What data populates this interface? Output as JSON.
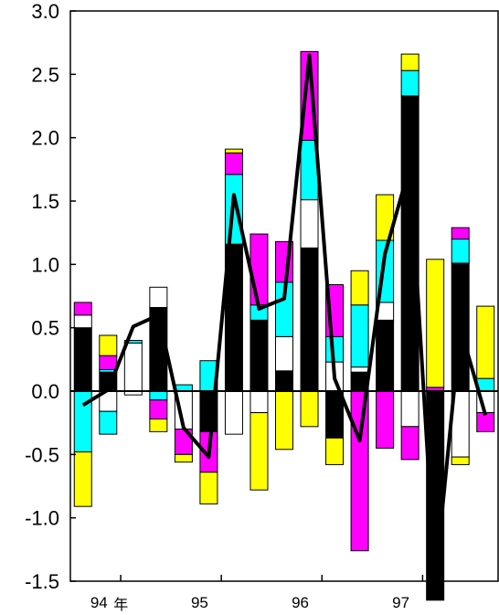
{
  "chart_data": {
    "type": "bar",
    "stacked": true,
    "ylim": [
      -1.5,
      3.0
    ],
    "yticks": [
      "3.0",
      "2.5",
      "2.0",
      "1.5",
      "1.0",
      "0.5",
      "0.0",
      "-0.5",
      "-1.0",
      "-1.5"
    ],
    "yticks_values": [
      3.0,
      2.5,
      2.0,
      1.5,
      1.0,
      0.5,
      0.0,
      -0.5,
      -1.0,
      -1.5
    ],
    "x_tick_labels": [
      {
        "text": "94",
        "after_quarter": 1.5
      },
      {
        "text": "年",
        "after_quarter": 1.5
      },
      {
        "text": "95",
        "after_quarter": 5.5
      },
      {
        "text": "96",
        "after_quarter": 9.5
      },
      {
        "text": "97",
        "after_quarter": 13.5
      }
    ],
    "quarters": 17,
    "series_colors": {
      "black": "#000000",
      "white": "#ffffff",
      "cyan": "#00ffff",
      "magenta": "#ff00ff",
      "yellow": "#ffff00",
      "line": "#000000"
    },
    "stacks": [
      {
        "pos": [
          [
            "black",
            0.5
          ],
          [
            "white",
            0.1
          ],
          [
            "magenta",
            0.1
          ]
        ],
        "neg": [
          [
            "cyan",
            -0.48
          ],
          [
            "yellow",
            -0.43
          ]
        ]
      },
      {
        "pos": [
          [
            "black",
            0.15
          ],
          [
            "cyan",
            0.02
          ],
          [
            "magenta",
            0.11
          ],
          [
            "yellow",
            0.16
          ]
        ],
        "neg": [
          [
            "white",
            -0.16
          ],
          [
            "cyan",
            -0.18
          ]
        ]
      },
      {
        "pos": [
          [
            "white",
            0.38
          ],
          [
            "cyan",
            0.02
          ]
        ],
        "neg": [
          [
            "white",
            -0.03
          ]
        ]
      },
      {
        "pos": [
          [
            "black",
            0.66
          ],
          [
            "white",
            0.16
          ]
        ],
        "neg": [
          [
            "cyan",
            -0.07
          ],
          [
            "magenta",
            -0.15
          ],
          [
            "yellow",
            -0.1
          ]
        ]
      },
      {
        "pos": [
          [
            "cyan",
            0.05
          ]
        ],
        "neg": [
          [
            "white",
            -0.3
          ],
          [
            "magenta",
            -0.2
          ],
          [
            "yellow",
            -0.06
          ]
        ]
      },
      {
        "pos": [
          [
            "cyan",
            0.24
          ]
        ],
        "neg": [
          [
            "black",
            -0.32
          ],
          [
            "magenta",
            -0.32
          ],
          [
            "yellow",
            -0.25
          ]
        ]
      },
      {
        "pos": [
          [
            "black",
            1.16
          ],
          [
            "cyan",
            0.55
          ],
          [
            "magenta",
            0.17
          ],
          [
            "yellow",
            0.03
          ]
        ],
        "neg": [
          [
            "white",
            -0.34
          ]
        ]
      },
      {
        "pos": [
          [
            "black",
            0.56
          ],
          [
            "cyan",
            0.12
          ],
          [
            "magenta",
            0.56
          ]
        ],
        "neg": [
          [
            "white",
            -0.17
          ],
          [
            "yellow",
            -0.61
          ]
        ]
      },
      {
        "pos": [
          [
            "black",
            0.16
          ],
          [
            "white",
            0.27
          ],
          [
            "cyan",
            0.43
          ],
          [
            "magenta",
            0.32
          ]
        ],
        "neg": [
          [
            "yellow",
            -0.46
          ]
        ]
      },
      {
        "pos": [
          [
            "black",
            1.13
          ],
          [
            "white",
            0.38
          ],
          [
            "cyan",
            0.47
          ],
          [
            "magenta",
            0.7
          ]
        ],
        "neg": [
          [
            "yellow",
            -0.28
          ]
        ]
      },
      {
        "pos": [
          [
            "white",
            0.23
          ],
          [
            "cyan",
            0.2
          ],
          [
            "magenta",
            0.41
          ]
        ],
        "neg": [
          [
            "black",
            -0.37
          ],
          [
            "yellow",
            -0.21
          ]
        ]
      },
      {
        "pos": [
          [
            "black",
            0.15
          ],
          [
            "white",
            0.04
          ],
          [
            "cyan",
            0.49
          ],
          [
            "yellow",
            0.27
          ]
        ],
        "neg": [
          [
            "magenta",
            -1.26
          ]
        ]
      },
      {
        "pos": [
          [
            "black",
            0.56
          ],
          [
            "white",
            0.14
          ],
          [
            "cyan",
            0.49
          ],
          [
            "yellow",
            0.36
          ]
        ],
        "neg": [
          [
            "magenta",
            -0.45
          ]
        ]
      },
      {
        "pos": [
          [
            "black",
            2.33
          ],
          [
            "cyan",
            0.2
          ],
          [
            "yellow",
            0.13
          ]
        ],
        "neg": [
          [
            "white",
            -0.28
          ],
          [
            "magenta",
            -0.26
          ]
        ]
      },
      {
        "pos": [
          [
            "magenta",
            0.03
          ],
          [
            "yellow",
            1.01
          ]
        ],
        "neg": [
          [
            "black",
            -1.65
          ]
        ]
      },
      {
        "pos": [
          [
            "black",
            1.01
          ],
          [
            "cyan",
            0.19
          ],
          [
            "magenta",
            0.09
          ]
        ],
        "neg": [
          [
            "white",
            -0.52
          ],
          [
            "yellow",
            -0.06
          ]
        ]
      },
      {
        "pos": [
          [
            "cyan",
            0.1
          ],
          [
            "yellow",
            0.57
          ]
        ],
        "neg": [
          [
            "white",
            -0.17
          ],
          [
            "magenta",
            -0.15
          ]
        ]
      }
    ],
    "line": [
      -0.11,
      0.01,
      0.51,
      0.6,
      -0.29,
      -0.52,
      1.55,
      0.65,
      0.73,
      2.65,
      0.1,
      -0.39,
      1.08,
      1.78,
      -1.65,
      0.5,
      -0.19
    ]
  }
}
